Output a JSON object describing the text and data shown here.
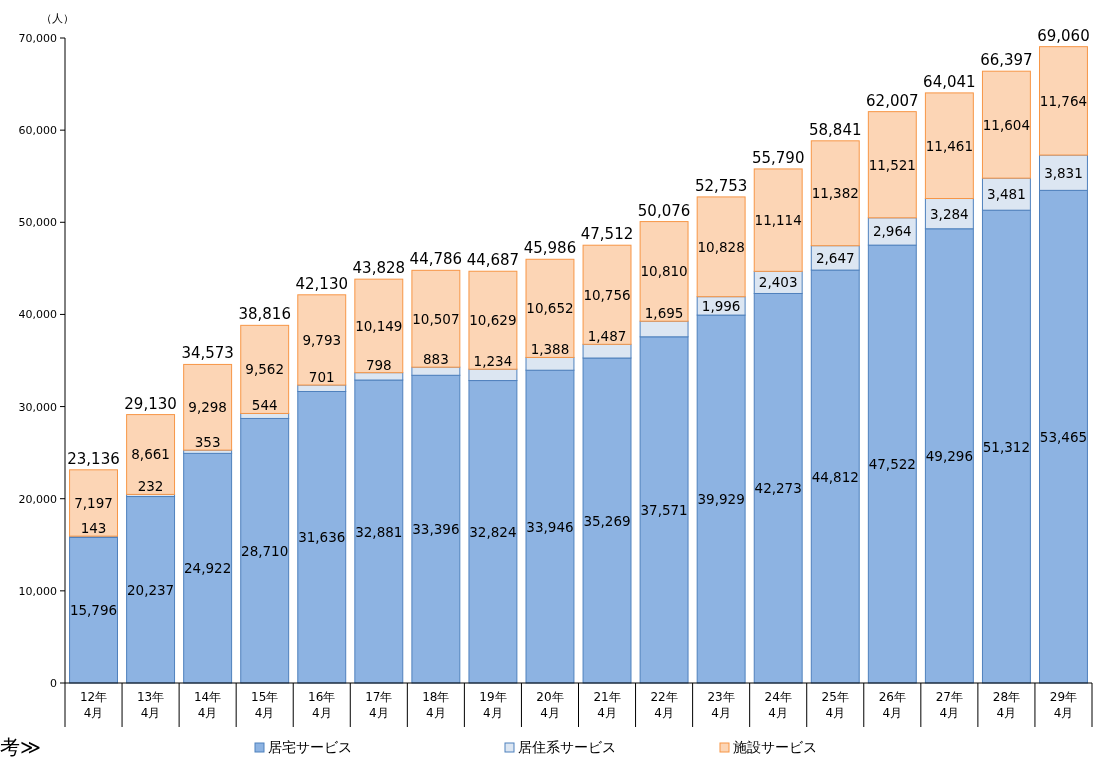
{
  "chart_data": {
    "type": "bar",
    "stacked": true,
    "ylabel": "（人）",
    "categories": [
      "12年\n4月",
      "13年\n4月",
      "14年\n4月",
      "15年\n4月",
      "16年\n4月",
      "17年\n4月",
      "18年\n4月",
      "19年\n4月",
      "20年\n4月",
      "21年\n4月",
      "22年\n4月",
      "23年\n4月",
      "24年\n4月",
      "25年\n4月",
      "26年\n4月",
      "27年\n4月",
      "28年\n4月",
      "29年\n4月"
    ],
    "series": [
      {
        "name": "居宅サービス",
        "color": "#8db3e2",
        "values": [
          15796,
          20237,
          24922,
          28710,
          31636,
          32881,
          33396,
          32824,
          33946,
          35269,
          37571,
          39929,
          42273,
          44812,
          47522,
          49296,
          51312,
          53465
        ],
        "value_labels": [
          "15,796",
          "20,237",
          "24,922",
          "28,710",
          "31,636",
          "32,881",
          "33,396",
          "32,824",
          "33,946",
          "35,269",
          "37,571",
          "39,929",
          "42,273",
          "44,812",
          "47,522",
          "49,296",
          "51,312",
          "53,465"
        ]
      },
      {
        "name": "居住系サービス",
        "color": "#dce6f2",
        "values": [
          143,
          232,
          353,
          544,
          701,
          798,
          883,
          1234,
          1388,
          1487,
          1695,
          1996,
          2403,
          2647,
          2964,
          3284,
          3481,
          3831
        ],
        "value_labels": [
          "143",
          "232",
          "353",
          "544",
          "701",
          "798",
          "883",
          "1,234",
          "1,388",
          "1,487",
          "1,695",
          "1,996",
          "2,403",
          "2,647",
          "2,964",
          "3,284",
          "3,481",
          "3,831"
        ]
      },
      {
        "name": "施設サービス",
        "color": "#fcd5b5",
        "values": [
          7197,
          8661,
          9298,
          9562,
          9793,
          10149,
          10507,
          10629,
          10652,
          10756,
          10810,
          10828,
          11114,
          11382,
          11521,
          11461,
          11604,
          11764
        ],
        "value_labels": [
          "7,197",
          "8,661",
          "9,298",
          "9,562",
          "9,793",
          "10,149",
          "10,507",
          "10,629",
          "10,652",
          "10,756",
          "10,810",
          "10,828",
          "11,114",
          "11,382",
          "11,521",
          "11,461",
          "11,604",
          "11,764"
        ]
      }
    ],
    "totals": [
      "23,136",
      "29,130",
      "34,573",
      "38,816",
      "42,130",
      "43,828",
      "44,786",
      "44,687",
      "45,986",
      "47,512",
      "50,076",
      "52,753",
      "55,790",
      "58,841",
      "62,007",
      "64,041",
      "66,397",
      "69,060"
    ],
    "ylim": [
      0,
      70000
    ],
    "yticks": [
      0,
      {
        "value": 10000,
        "label": "10,000"
      },
      {
        "value": 20000,
        "label": "20,000"
      },
      {
        "value": 30000,
        "label": "30,000"
      },
      {
        "value": 40000,
        "label": "40,000"
      },
      {
        "value": 50000,
        "label": "50,000"
      },
      {
        "value": 60000,
        "label": "60,000"
      },
      {
        "value": 70000,
        "label": "70,000"
      }
    ],
    "grid": false,
    "legend": "bottom",
    "annotations": [
      "考≫"
    ]
  }
}
